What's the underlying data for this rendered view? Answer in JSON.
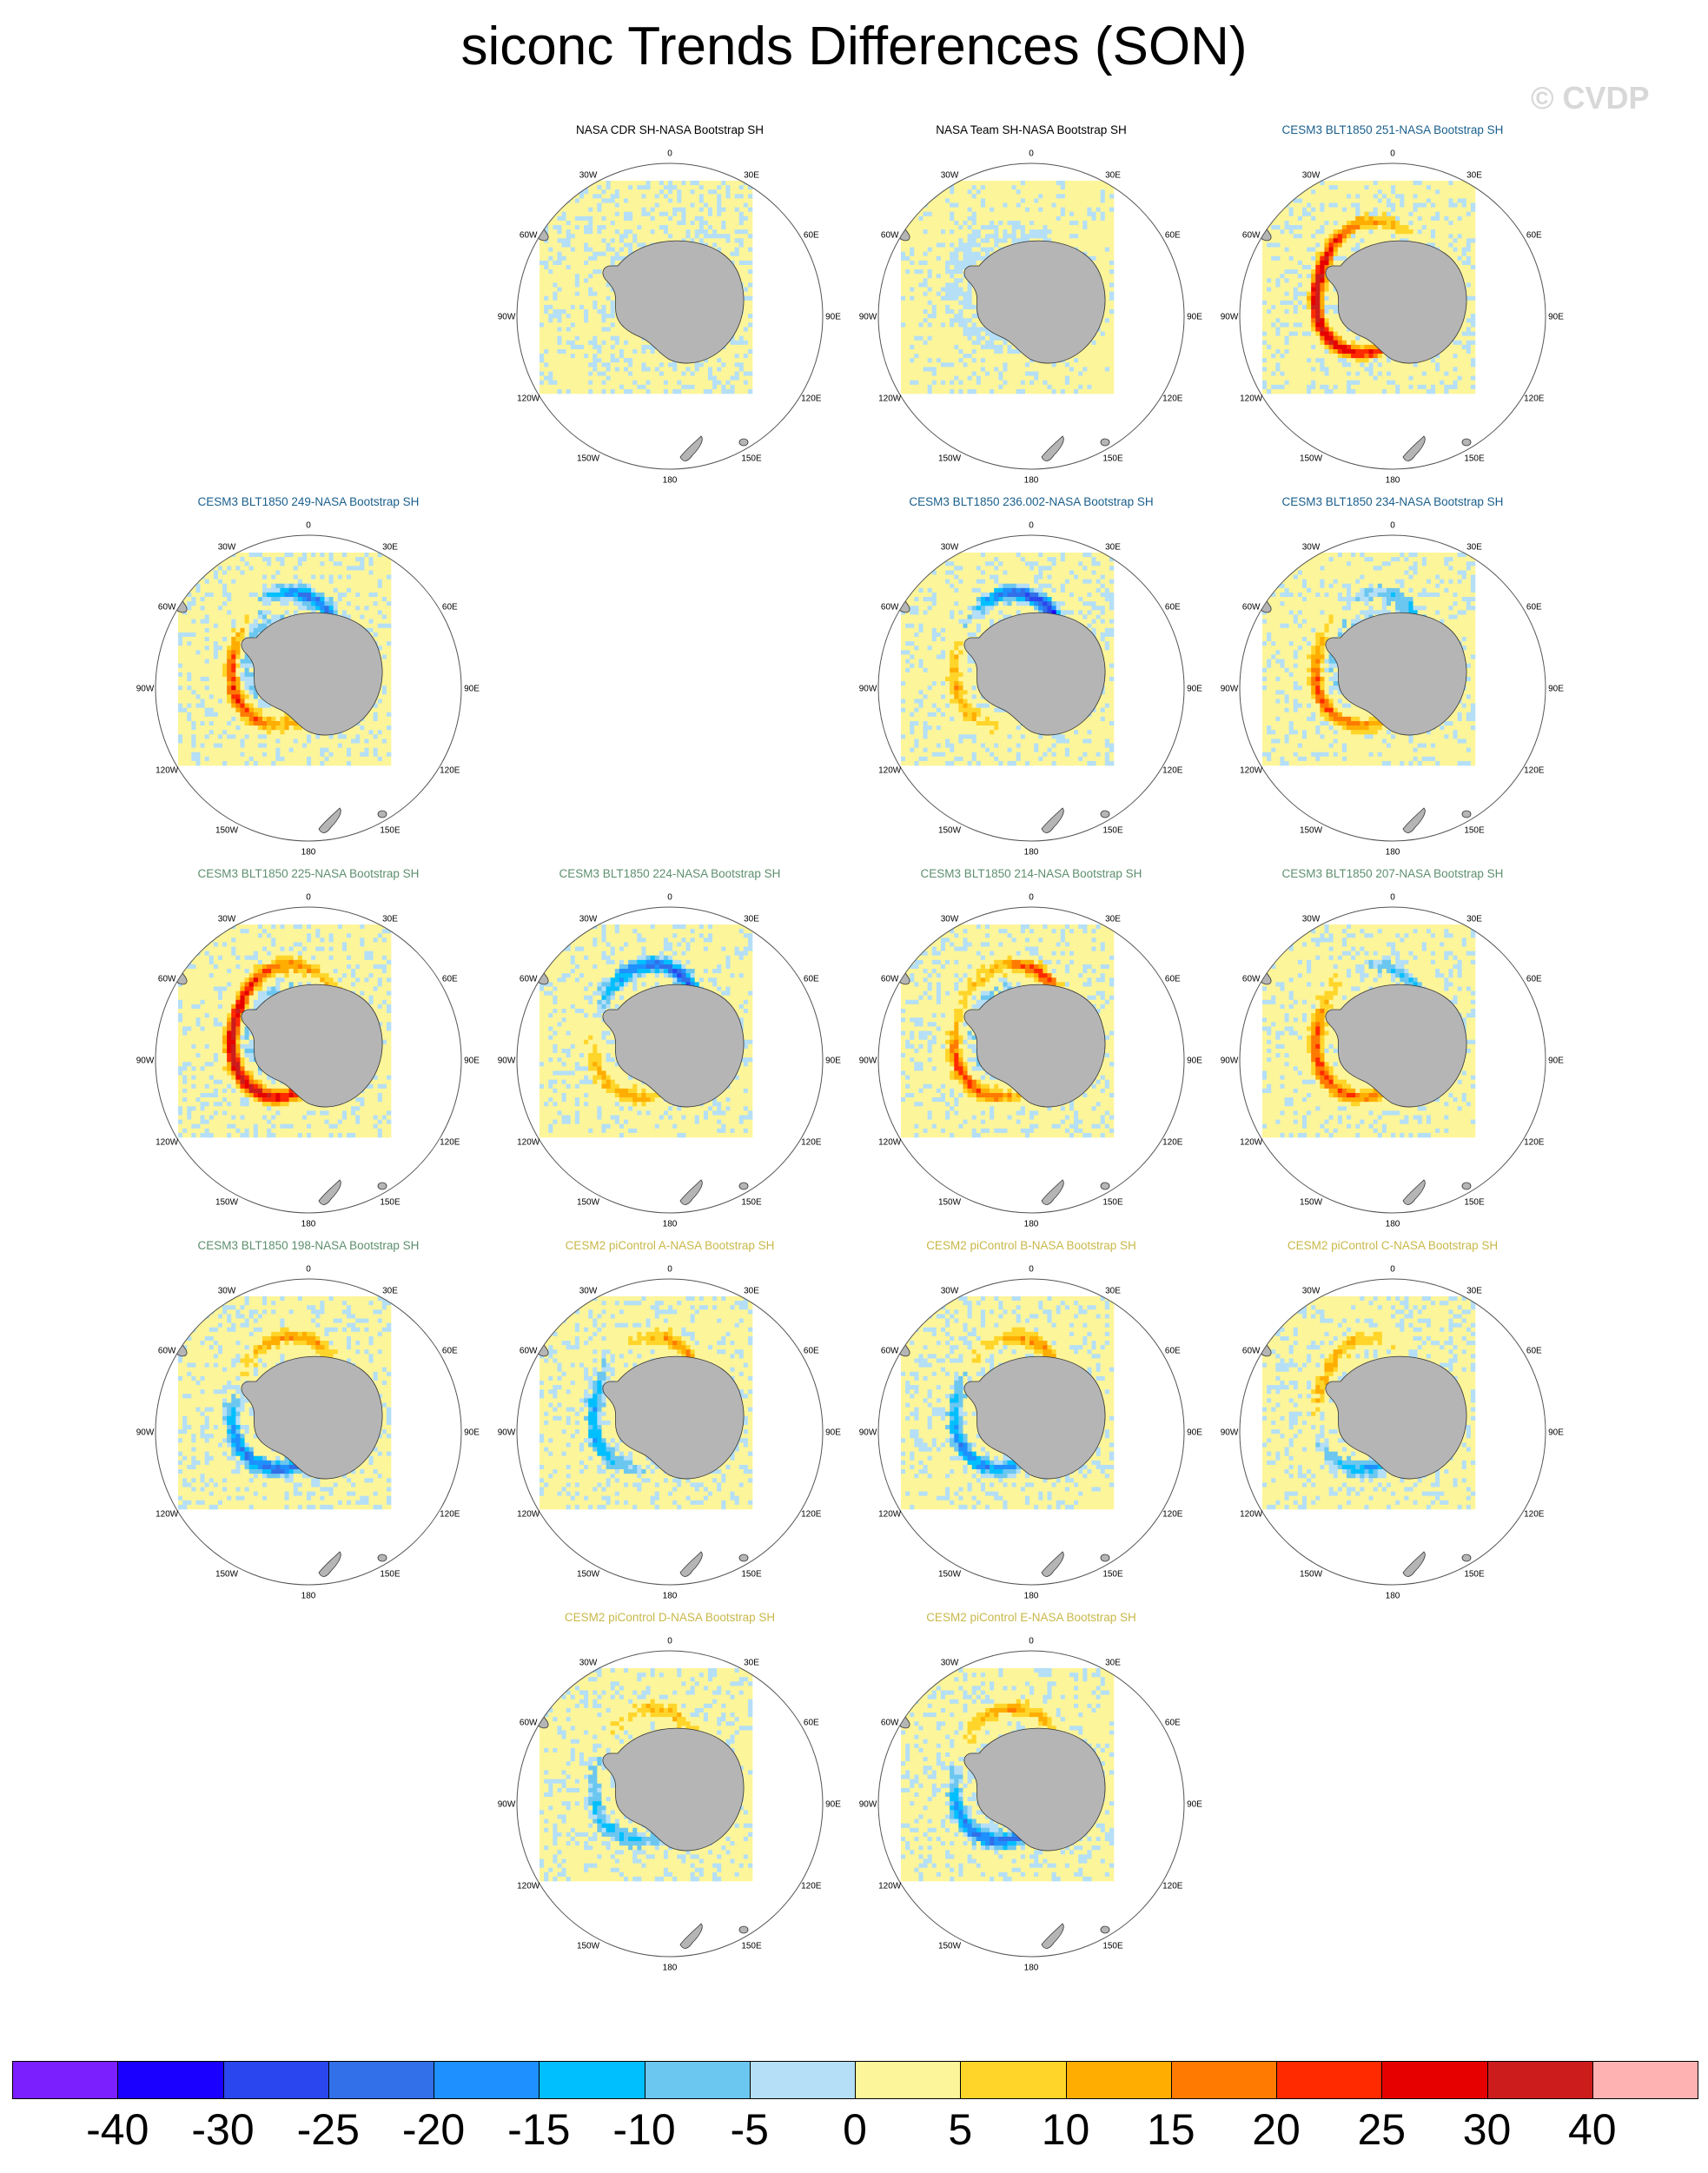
{
  "title": "siconc Trends Differences (SON)",
  "watermark": "© CVDP",
  "chart_data": {
    "type": "heatmap",
    "title": "siconc Trends Differences (SON)",
    "projection": "south-polar-stereographic",
    "lon_labels": [
      "0",
      "30E",
      "60E",
      "90E",
      "120E",
      "150E",
      "180",
      "150W",
      "120W",
      "90W",
      "60W",
      "30W"
    ],
    "panels": [
      {
        "id": "p1",
        "title": "NASA CDR SH-NASA Bootstrap SH",
        "title_color": "#000000",
        "pattern": "cdr"
      },
      {
        "id": "p2",
        "title": "NASA Team SH-NASA Bootstrap SH",
        "title_color": "#000000",
        "pattern": "team"
      },
      {
        "id": "p3",
        "title": "CESM3 BLT1850 251-NASA Bootstrap SH",
        "title_color": "#1a5f8c",
        "pattern": "m251"
      },
      {
        "id": "p4",
        "title": "CESM3 BLT1850 249-NASA Bootstrap SH",
        "title_color": "#1a5f8c",
        "pattern": "m249"
      },
      {
        "id": "p5",
        "title": "CESM3 BLT1850 236.002-NASA Bootstrap SH",
        "title_color": "#1a5f8c",
        "pattern": "m236"
      },
      {
        "id": "p6",
        "title": "CESM3 BLT1850 234-NASA Bootstrap SH",
        "title_color": "#1a5f8c",
        "pattern": "m234"
      },
      {
        "id": "p7",
        "title": "CESM3 BLT1850 225-NASA Bootstrap SH",
        "title_color": "#5e8f6e",
        "pattern": "m225"
      },
      {
        "id": "p8",
        "title": "CESM3 BLT1850 224-NASA Bootstrap SH",
        "title_color": "#5e8f6e",
        "pattern": "m224"
      },
      {
        "id": "p9",
        "title": "CESM3 BLT1850 214-NASA Bootstrap SH",
        "title_color": "#5e8f6e",
        "pattern": "m214"
      },
      {
        "id": "p10",
        "title": "CESM3 BLT1850 207-NASA Bootstrap SH",
        "title_color": "#5e8f6e",
        "pattern": "m207"
      },
      {
        "id": "p11",
        "title": "CESM3 BLT1850 198-NASA Bootstrap SH",
        "title_color": "#5e8f6e",
        "pattern": "m198"
      },
      {
        "id": "p12",
        "title": "CESM2 piControl A-NASA Bootstrap SH",
        "title_color": "#c9b84a",
        "pattern": "cA"
      },
      {
        "id": "p13",
        "title": "CESM2 piControl B-NASA Bootstrap SH",
        "title_color": "#c9b84a",
        "pattern": "cB"
      },
      {
        "id": "p14",
        "title": "CESM2 piControl C-NASA Bootstrap SH",
        "title_color": "#c9b84a",
        "pattern": "cC"
      },
      {
        "id": "p15",
        "title": "CESM2 piControl D-NASA Bootstrap SH",
        "title_color": "#c9b84a",
        "pattern": "cD"
      },
      {
        "id": "p16",
        "title": "CESM2 piControl E-NASA Bootstrap SH",
        "title_color": "#c9b84a",
        "pattern": "cE"
      }
    ],
    "colorbar": {
      "labels": [
        "-40",
        "-30",
        "-25",
        "-20",
        "-15",
        "-10",
        "-5",
        "0",
        "5",
        "10",
        "15",
        "20",
        "25",
        "30",
        "40"
      ],
      "colors": [
        "#7b1fff",
        "#1a00ff",
        "#2a46ee",
        "#3170e8",
        "#1e90ff",
        "#00bfff",
        "#6cc7f0",
        "#b4dff6",
        "#fdf599",
        "#ffd52a",
        "#ffad00",
        "#ff7a00",
        "#ff2a00",
        "#e60000",
        "#cd1c1c",
        "#ffb2b2"
      ]
    }
  }
}
